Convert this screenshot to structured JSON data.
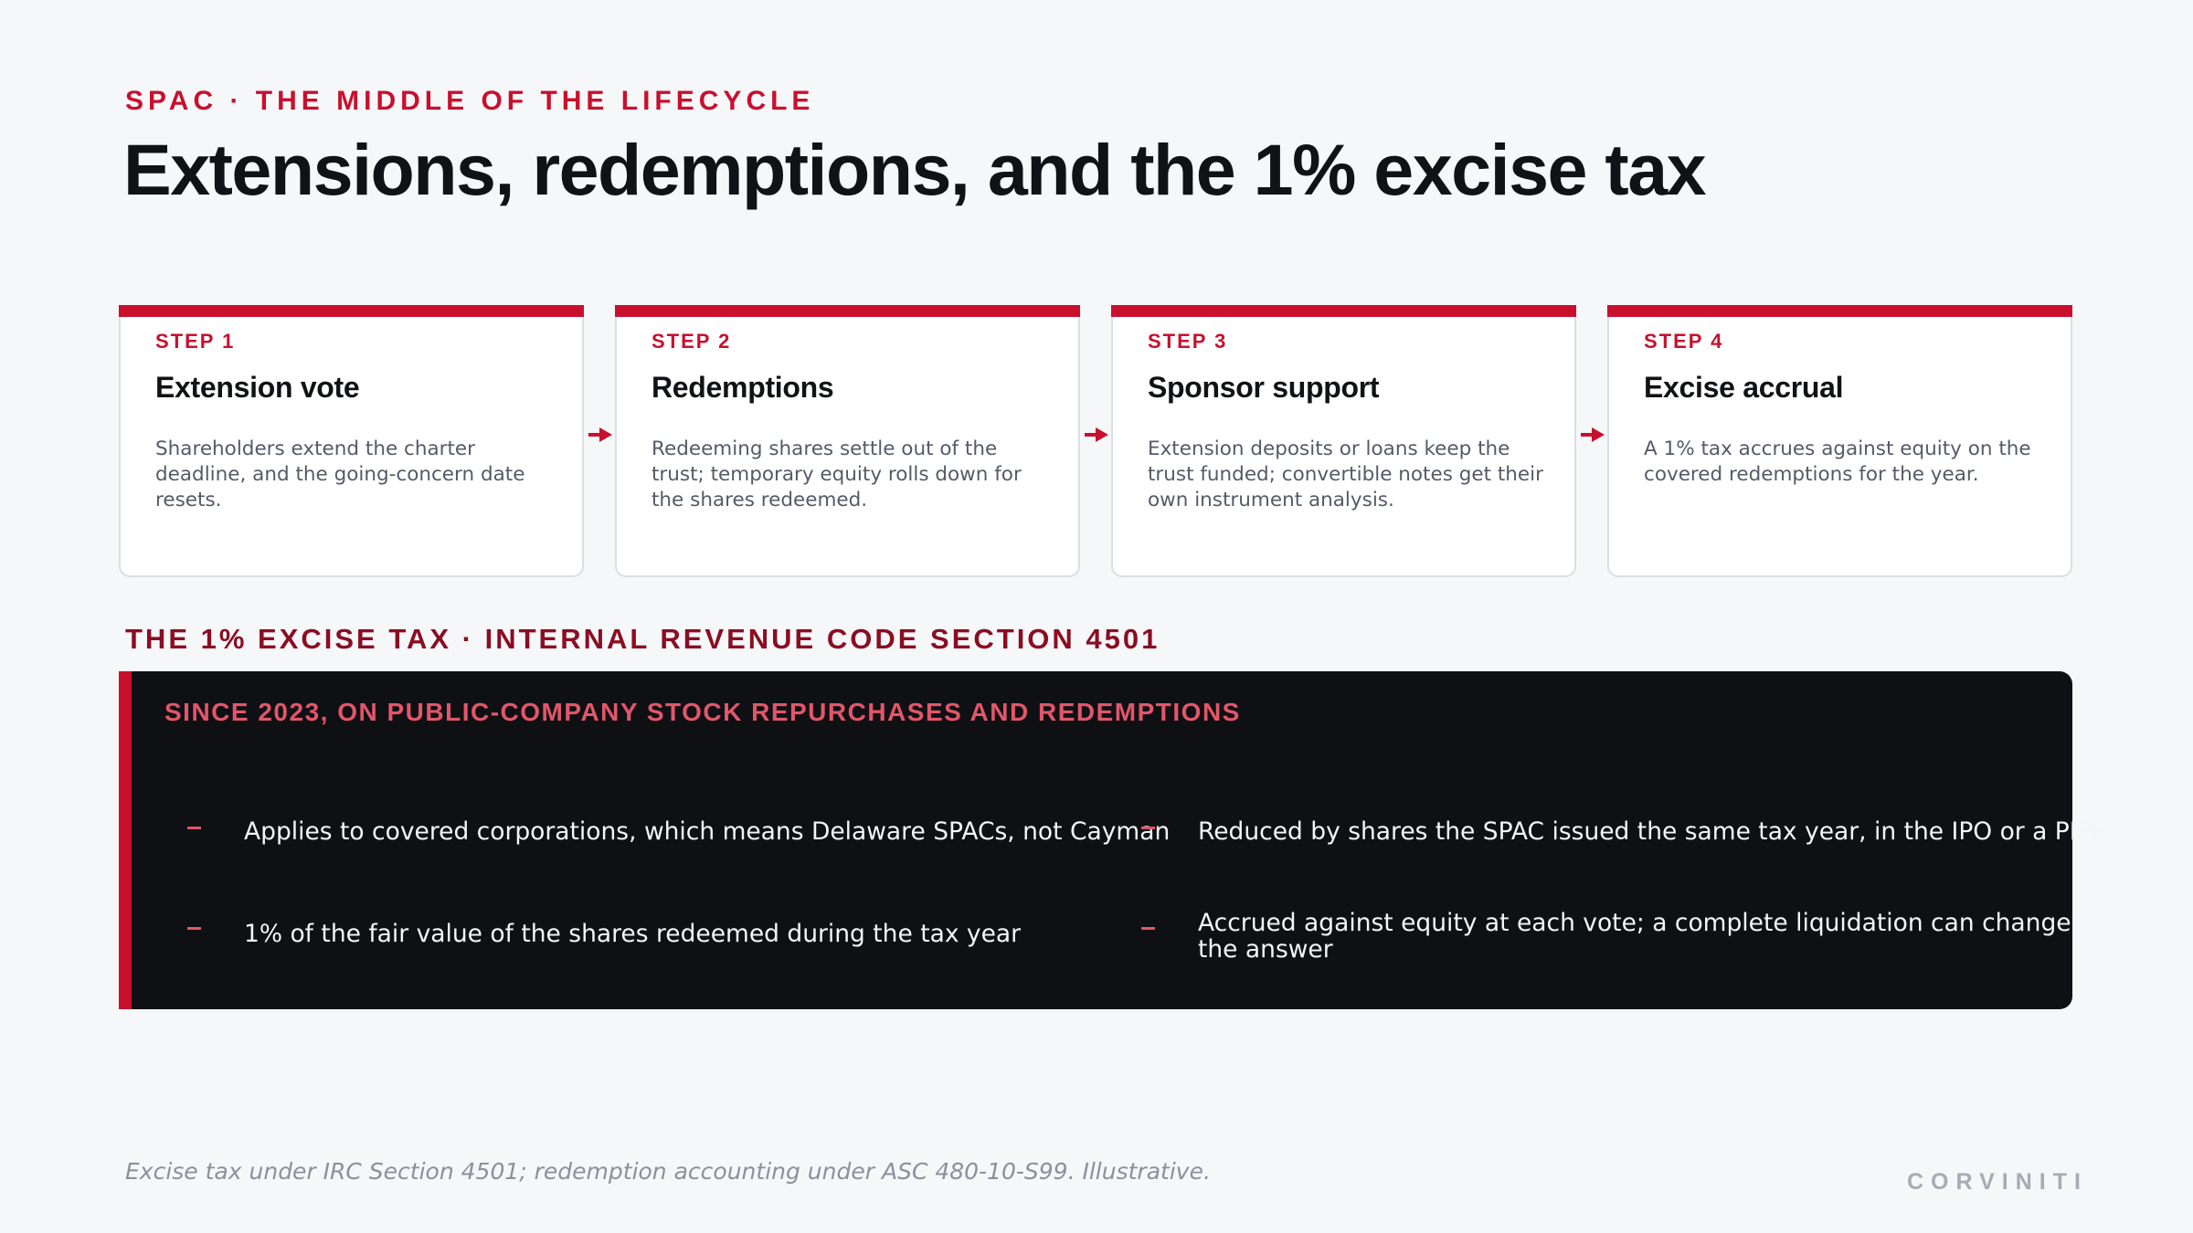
{
  "header": {
    "eyebrow": "SPAC · THE MIDDLE OF THE LIFECYCLE",
    "title": "Extensions, redemptions, and the 1% excise tax"
  },
  "steps": [
    {
      "number": "STEP 1",
      "title": "Extension vote",
      "body": "Shareholders extend the charter deadline, and the going-concern date resets."
    },
    {
      "number": "STEP 2",
      "title": "Redemptions",
      "body": "Redeeming shares settle out of the trust; temporary equity rolls down for the shares redeemed."
    },
    {
      "number": "STEP 3",
      "title": "Sponsor support",
      "body": "Extension deposits or loans keep the trust funded; convertible notes get their own instrument analysis."
    },
    {
      "number": "STEP 4",
      "title": "Excise accrual",
      "body": "A 1% tax accrues against equity on the covered redemptions for the year."
    }
  ],
  "excise": {
    "section_label": "THE 1% EXCISE TAX · INTERNAL REVENUE CODE SECTION 4501",
    "panel_label": "SINCE 2023, ON PUBLIC-COMPANY STOCK REPURCHASES AND REDEMPTIONS",
    "bullets": [
      "Applies to covered corporations, which means Delaware SPACs, not Cayman",
      "Reduced by shares the SPAC issued the same tax year, in the IPO or a PIPE",
      "1% of the fair value of the shares redeemed during the tax year",
      "Accrued against equity at each vote; a complete liquidation can change the answer"
    ]
  },
  "footer": {
    "note": "Excise tax under IRC Section 4501; redemption accounting under ASC 480-10-S99. Illustrative.",
    "brand": "CORVINITI"
  },
  "colors": {
    "accent": "#c8102e",
    "panel_background": "#0f1013",
    "page_background": "#f6f7f9"
  }
}
